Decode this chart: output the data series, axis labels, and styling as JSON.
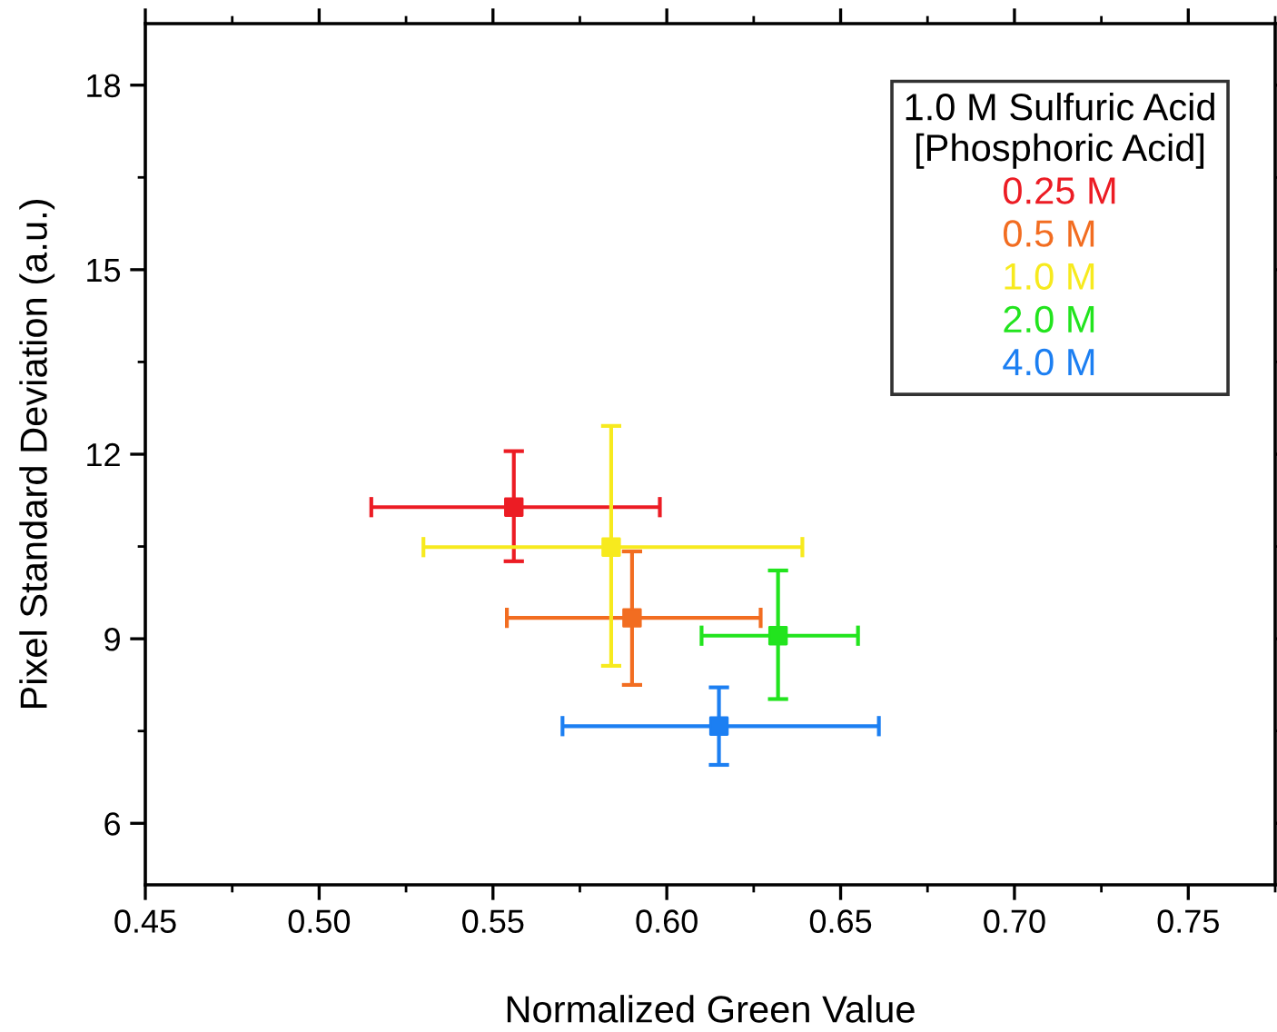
{
  "chart_data": {
    "type": "scatter",
    "xlabel": "Normalized Green Value",
    "ylabel": "Pixel Standard Deviation (a.u.)",
    "legend_title": "1.0 M Sulfuric Acid\n[Phosphoric Acid]",
    "legend": "top right",
    "marker": "square",
    "grid": false,
    "xlim": [
      0.45,
      0.775
    ],
    "xticks": [
      0.45,
      {
        "value": 0.5,
        "label": "0.50"
      },
      0.55,
      {
        "value": 0.6,
        "label": "0.60"
      },
      0.65,
      {
        "value": 0.7,
        "label": "0.70"
      },
      0.75
    ],
    "ylim": [
      5,
      19
    ],
    "yticks": [
      6,
      9,
      12,
      15,
      18
    ],
    "series": [
      {
        "name": "0.25 M",
        "color": "#ec1c24",
        "x": [
          0.556
        ],
        "values": [
          11.14
        ],
        "xerrors": [
          [
            0.515,
            0.598
          ]
        ],
        "errors": [
          [
            10.26,
            12.05
          ]
        ]
      },
      {
        "name": "0.5 M",
        "color": "#f26d21",
        "x": [
          0.59
        ],
        "values": [
          9.34
        ],
        "xerrors": [
          [
            0.554,
            0.627
          ]
        ],
        "errors": [
          [
            8.25,
            10.42
          ]
        ]
      },
      {
        "name": "1.0 M",
        "color": "#f7ea1e",
        "x": [
          0.584
        ],
        "values": [
          10.49
        ],
        "xerrors": [
          [
            0.53,
            0.639
          ]
        ],
        "errors": [
          [
            8.56,
            12.46
          ]
        ]
      },
      {
        "name": "2.0 M",
        "color": "#22e41e",
        "x": [
          0.632
        ],
        "values": [
          9.05
        ],
        "xerrors": [
          [
            0.61,
            0.655
          ]
        ],
        "errors": [
          [
            8.02,
            10.11
          ]
        ]
      },
      {
        "name": "4.0 M",
        "color": "#1c7ff2",
        "x": [
          0.615
        ],
        "values": [
          7.58
        ],
        "xerrors": [
          [
            0.57,
            0.661
          ]
        ],
        "errors": [
          [
            6.95,
            8.21
          ]
        ]
      }
    ]
  }
}
